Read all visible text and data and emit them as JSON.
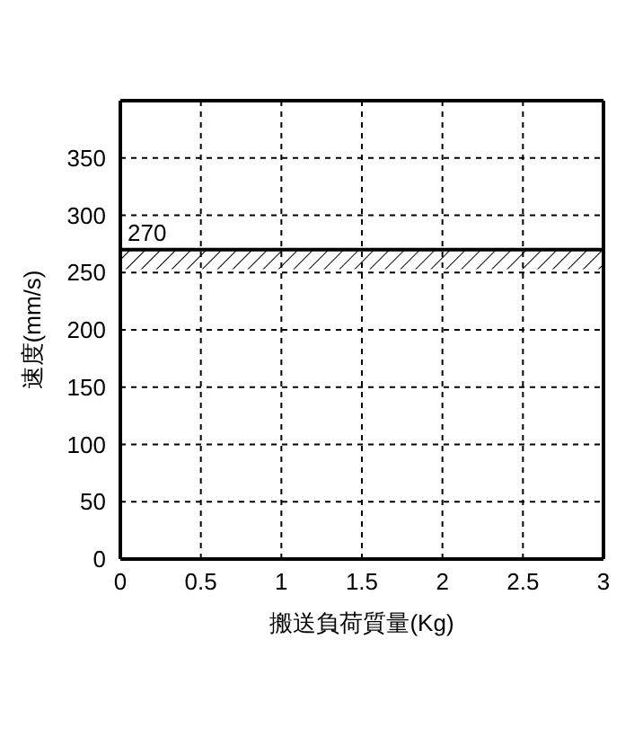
{
  "chart_data": {
    "type": "line",
    "xlabel": "搬送負荷質量(Kg)",
    "ylabel": "速度(mm/s)",
    "xlim": [
      0,
      3
    ],
    "xticks": [
      0,
      0.5,
      1,
      1.5,
      2,
      2.5,
      3
    ],
    "ylim": [
      0,
      400
    ],
    "yticks": [
      0,
      50,
      100,
      150,
      200,
      250,
      300,
      350
    ],
    "series": [
      {
        "x": [
          0,
          3
        ],
        "values": [
          270,
          270
        ],
        "color": "#000000"
      }
    ],
    "bands": [
      {
        "axis": "y",
        "from": 253,
        "to": 270,
        "color": "#000000"
      }
    ],
    "annotations": [
      {
        "text": "270",
        "x": 0,
        "y": 270
      }
    ],
    "grid": true,
    "line_style": "solid"
  }
}
